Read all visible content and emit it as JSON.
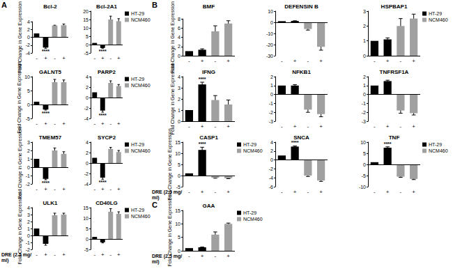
{
  "chart_data": [
    {
      "type": "bar",
      "title": "Bcl-2",
      "panel_label": "A",
      "ylabel": "Fold Change in Gene Expression",
      "categories": [
        "-",
        "+",
        "-",
        "+"
      ],
      "series": [
        {
          "name": "HT-29",
          "color": "#000000",
          "values": [
            1,
            -2.6,
            null,
            null
          ],
          "errors": [
            0,
            0.2,
            null,
            null
          ]
        },
        {
          "name": "NCM460",
          "color": "#a0a0a0",
          "values": [
            null,
            null,
            3.0,
            3.1
          ],
          "errors": [
            null,
            null,
            0.1,
            0.3
          ]
        }
      ],
      "ylim": [
        -4,
        4
      ],
      "yticks": [
        -4,
        -2,
        0,
        2,
        4
      ],
      "grid": false,
      "annotations": [
        {
          "series": "HT-29",
          "index": 1,
          "text": "****"
        }
      ]
    },
    {
      "type": "bar",
      "title": "Bcl-2A1",
      "legend": "right",
      "categories": [
        "-",
        "+",
        "-",
        "+"
      ],
      "series": [
        {
          "name": "HT-29",
          "color": "#000000",
          "values": [
            1,
            -2.0,
            null,
            null
          ],
          "errors": [
            0,
            0.2,
            null,
            null
          ]
        },
        {
          "name": "NCM460",
          "color": "#a0a0a0",
          "values": [
            null,
            null,
            15,
            14
          ],
          "errors": [
            null,
            null,
            2,
            1.5
          ]
        }
      ],
      "ylim": [
        -5,
        20
      ],
      "yticks": [
        -5,
        0,
        5,
        10,
        15,
        20
      ],
      "grid": false,
      "annotations": [
        {
          "series": "HT-29",
          "index": 1,
          "text": "****"
        }
      ]
    },
    {
      "type": "bar",
      "title": "GALNT5",
      "ylabel": "Fold Change in Gene Expression",
      "categories": [
        "-",
        "+",
        "-",
        "+"
      ],
      "series": [
        {
          "name": "HT-29",
          "color": "#000000",
          "values": [
            1,
            -1.8,
            null,
            null
          ],
          "errors": [
            0,
            0.2,
            null,
            null
          ]
        },
        {
          "name": "NCM460",
          "color": "#a0a0a0",
          "values": [
            null,
            null,
            8,
            8
          ],
          "errors": [
            null,
            null,
            1,
            0.8
          ]
        }
      ],
      "ylim": [
        -5,
        10
      ],
      "yticks": [
        -5,
        0,
        5,
        10
      ],
      "grid": false,
      "annotations": [
        {
          "series": "HT-29",
          "index": 1,
          "text": "****"
        }
      ]
    },
    {
      "type": "bar",
      "title": "PARP2",
      "legend": "right",
      "categories": [
        "-",
        "+",
        "-",
        "+"
      ],
      "series": [
        {
          "name": "HT-29",
          "color": "#000000",
          "values": [
            1,
            -2.5,
            null,
            null
          ],
          "errors": [
            0,
            0.3,
            null,
            null
          ]
        },
        {
          "name": "NCM460",
          "color": "#a0a0a0",
          "values": [
            null,
            null,
            2.8,
            2.2
          ],
          "errors": [
            null,
            null,
            0.4,
            0.3
          ]
        }
      ],
      "ylim": [
        -4,
        4
      ],
      "yticks": [
        -4,
        -2,
        0,
        2,
        4
      ],
      "grid": false,
      "annotations": [
        {
          "series": "HT-29",
          "index": 1,
          "text": "****"
        }
      ]
    },
    {
      "type": "bar",
      "title": "TMEM57",
      "ylabel": "Fold Change in Gene Expression",
      "categories": [
        "-",
        "+",
        "-",
        "+"
      ],
      "series": [
        {
          "name": "HT-29",
          "color": "#000000",
          "values": [
            1,
            -1.4,
            null,
            null
          ],
          "errors": [
            0,
            0.1,
            null,
            null
          ]
        },
        {
          "name": "NCM460",
          "color": "#a0a0a0",
          "values": [
            null,
            null,
            2.0,
            1.6
          ],
          "errors": [
            null,
            null,
            0.3,
            0.25
          ]
        }
      ],
      "ylim": [
        -2,
        3
      ],
      "yticks": [
        -2,
        -1,
        0,
        1,
        2,
        3
      ],
      "grid": false,
      "annotations": [
        {
          "series": "HT-29",
          "index": 1,
          "text": "****"
        }
      ]
    },
    {
      "type": "bar",
      "title": "SYCP2",
      "legend": "right",
      "categories": [
        "-",
        "+",
        "-",
        "+"
      ],
      "series": [
        {
          "name": "HT-29",
          "color": "#000000",
          "values": [
            1,
            -2.8,
            null,
            null
          ],
          "errors": [
            0,
            0.3,
            null,
            null
          ]
        },
        {
          "name": "NCM460",
          "color": "#a0a0a0",
          "values": [
            null,
            null,
            2.7,
            2.1
          ],
          "errors": [
            null,
            null,
            0.3,
            0.3
          ]
        }
      ],
      "ylim": [
        -4,
        4
      ],
      "yticks": [
        -4,
        -2,
        0,
        2,
        4
      ],
      "grid": false,
      "annotations": [
        {
          "series": "HT-29",
          "index": 1,
          "text": "****"
        }
      ]
    },
    {
      "type": "bar",
      "title": "ULK1",
      "ylabel": "Fold Change in Gene Expression",
      "xlabel": "DRE (2.5 mg/ml)",
      "categories": [
        "-",
        "+",
        "-",
        "+"
      ],
      "series": [
        {
          "name": "HT-29",
          "color": "#000000",
          "values": [
            1,
            -1.2,
            null,
            null
          ],
          "errors": [
            0,
            0.2,
            null,
            null
          ]
        },
        {
          "name": "NCM460",
          "color": "#a0a0a0",
          "values": [
            null,
            null,
            2.9,
            3.0
          ],
          "errors": [
            null,
            null,
            0.3,
            0.2
          ]
        }
      ],
      "ylim": [
        -2,
        4
      ],
      "yticks": [
        -2,
        -1,
        0,
        1,
        2,
        3,
        4
      ],
      "grid": false,
      "annotations": []
    },
    {
      "type": "bar",
      "title": "CD40LG",
      "legend": "right",
      "categories": [
        "-",
        "+",
        "-",
        "+"
      ],
      "series": [
        {
          "name": "HT-29",
          "color": "#000000",
          "values": [
            1,
            -1.6,
            null,
            null
          ],
          "errors": [
            0,
            0.3,
            null,
            null
          ]
        },
        {
          "name": "NCM460",
          "color": "#a0a0a0",
          "values": [
            null,
            null,
            13,
            12
          ],
          "errors": [
            null,
            null,
            1.5,
            1
          ]
        }
      ],
      "ylim": [
        -5,
        15
      ],
      "yticks": [
        -5,
        0,
        5,
        10,
        15
      ],
      "grid": false,
      "annotations": []
    },
    {
      "type": "bar",
      "title": "BMF",
      "panel_label": "B",
      "ylabel": "Fold Change in Gene Expression",
      "categories": [
        "-",
        "+",
        "-",
        "+"
      ],
      "series": [
        {
          "name": "HT-29",
          "color": "#000000",
          "values": [
            1,
            1.3,
            null,
            null
          ],
          "errors": [
            0,
            0.2,
            null,
            null
          ]
        },
        {
          "name": "NCM460",
          "color": "#a0a0a0",
          "values": [
            null,
            null,
            5.3,
            7.0
          ],
          "errors": [
            null,
            null,
            1.2,
            0.6
          ]
        }
      ],
      "ylim": [
        0,
        8
      ],
      "yticks": [
        0,
        2,
        4,
        6,
        8
      ],
      "grid": false,
      "annotations": []
    },
    {
      "type": "bar",
      "title": "DEFENSIN B",
      "categories": [
        "-",
        "+",
        "-",
        "+"
      ],
      "series": [
        {
          "name": "HT-29",
          "color": "#000000",
          "values": [
            1,
            1.2,
            null,
            null
          ],
          "errors": [
            0,
            0.1,
            null,
            null
          ]
        },
        {
          "name": "NCM460",
          "color": "#a0a0a0",
          "values": [
            null,
            null,
            -6,
            -22
          ],
          "errors": [
            null,
            null,
            1,
            3
          ]
        }
      ],
      "ylim": [
        -30,
        10
      ],
      "yticks": [
        -30,
        -20,
        -10,
        0,
        10
      ],
      "grid": false,
      "annotations": []
    },
    {
      "type": "bar",
      "title": "HSPBAP1",
      "legend": "right",
      "categories": [
        "-",
        "+",
        "-",
        "+"
      ],
      "series": [
        {
          "name": "HT-29",
          "color": "#000000",
          "values": [
            1,
            1.1,
            null,
            null
          ],
          "errors": [
            0,
            0.1,
            null,
            null
          ]
        },
        {
          "name": "NCM460",
          "color": "#a0a0a0",
          "values": [
            null,
            null,
            2.0,
            2.5
          ],
          "errors": [
            null,
            null,
            0.5,
            0.3
          ]
        }
      ],
      "ylim": [
        0,
        3
      ],
      "yticks": [
        0,
        1,
        2,
        3
      ],
      "grid": false,
      "annotations": []
    },
    {
      "type": "bar",
      "title": "IFNG",
      "ylabel": "Fold Change in Gene Expression",
      "categories": [
        "-",
        "+",
        "-",
        "+"
      ],
      "series": [
        {
          "name": "HT-29",
          "color": "#000000",
          "values": [
            1,
            3.3,
            null,
            null
          ],
          "errors": [
            0,
            0.2,
            null,
            null
          ]
        },
        {
          "name": "NCM460",
          "color": "#a0a0a0",
          "values": [
            null,
            null,
            1.9,
            1.5
          ],
          "errors": [
            null,
            null,
            0.4,
            0.4
          ]
        }
      ],
      "ylim": [
        0,
        4
      ],
      "yticks": [
        0,
        1,
        2,
        3,
        4
      ],
      "grid": false,
      "annotations": [
        {
          "series": "HT-29",
          "index": 1,
          "text": "****"
        }
      ]
    },
    {
      "type": "bar",
      "title": "NFKB1",
      "categories": [
        "-",
        "+",
        "-",
        "+"
      ],
      "series": [
        {
          "name": "HT-29",
          "color": "#000000",
          "values": [
            1,
            1.0,
            null,
            null
          ],
          "errors": [
            0,
            0.1,
            null,
            null
          ]
        },
        {
          "name": "NCM460",
          "color": "#a0a0a0",
          "values": [
            null,
            null,
            -1.7,
            -2.2
          ],
          "errors": [
            null,
            null,
            0.3,
            0.3
          ]
        }
      ],
      "ylim": [
        -3,
        2
      ],
      "yticks": [
        -3,
        -2,
        -1,
        0,
        1,
        2
      ],
      "grid": false,
      "annotations": []
    },
    {
      "type": "bar",
      "title": "TNFRSF1A",
      "categories": [
        "-",
        "+",
        "-",
        "+"
      ],
      "series": [
        {
          "name": "HT-29",
          "color": "#000000",
          "values": [
            1,
            1.5,
            null,
            null
          ],
          "errors": [
            0,
            0.1,
            null,
            null
          ]
        },
        {
          "name": "NCM460",
          "color": "#a0a0a0",
          "values": [
            null,
            null,
            -1.8,
            -2.1
          ],
          "errors": [
            null,
            null,
            0.3,
            0.2
          ]
        }
      ],
      "ylim": [
        -3,
        2
      ],
      "yticks": [
        -3,
        -2,
        -1,
        0,
        1,
        2
      ],
      "grid": false,
      "annotations": []
    },
    {
      "type": "bar",
      "title": "CASP1",
      "legend": "right",
      "ylabel": "Fold Change in Gene Expression",
      "xlabel": "DRE (2.5 mg/ml)",
      "categories": [
        "-",
        "+",
        "-",
        "+"
      ],
      "series": [
        {
          "name": "HT-29",
          "color": "#000000",
          "values": [
            1,
            11.5,
            null,
            null
          ],
          "errors": [
            0,
            1.2,
            null,
            null
          ]
        },
        {
          "name": "NCM460",
          "color": "#a0a0a0",
          "values": [
            null,
            null,
            -1.0,
            -1.2
          ],
          "errors": [
            null,
            null,
            0.2,
            0.2
          ]
        }
      ],
      "ylim": [
        -5,
        15
      ],
      "yticks": [
        -5,
        0,
        5,
        10,
        15
      ],
      "grid": false,
      "annotations": [
        {
          "series": "HT-29",
          "index": 1,
          "text": "****"
        }
      ]
    },
    {
      "type": "bar",
      "title": "SNCA",
      "categories": [
        "-",
        "+",
        "-",
        "+"
      ],
      "series": [
        {
          "name": "HT-29",
          "color": "#000000",
          "values": [
            1,
            3.0,
            null,
            null
          ],
          "errors": [
            0,
            0.15,
            null,
            null
          ]
        },
        {
          "name": "NCM460",
          "color": "#a0a0a0",
          "values": [
            null,
            null,
            -3.5,
            -4.6
          ],
          "errors": [
            null,
            null,
            0.2,
            0.2
          ]
        }
      ],
      "ylim": [
        -6,
        4
      ],
      "yticks": [
        -6,
        -4,
        -2,
        0,
        2,
        4
      ],
      "grid": false,
      "annotations": [
        {
          "series": "HT-29",
          "index": 1,
          "text": "****"
        }
      ]
    },
    {
      "type": "bar",
      "title": "TNF",
      "legend": "right",
      "categories": [
        "-",
        "+",
        "-",
        "+"
      ],
      "series": [
        {
          "name": "HT-29",
          "color": "#000000",
          "values": [
            1,
            7.5,
            null,
            null
          ],
          "errors": [
            0,
            0.4,
            null,
            null
          ]
        },
        {
          "name": "NCM460",
          "color": "#a0a0a0",
          "values": [
            null,
            null,
            -5.5,
            -6.5
          ],
          "errors": [
            null,
            null,
            0.3,
            0.3
          ]
        }
      ],
      "ylim": [
        -10,
        10
      ],
      "yticks": [
        -10,
        -5,
        0,
        5,
        10
      ],
      "grid": false,
      "annotations": [
        {
          "series": "HT-29",
          "index": 1,
          "text": "****"
        }
      ]
    },
    {
      "type": "bar",
      "title": "GAA",
      "panel_label": "C",
      "legend": "right",
      "ylabel": "Fold Change in Gene Expression",
      "xlabel": "DRE (2.5 mg/ml)",
      "categories": [
        "-",
        "+",
        "-",
        "+"
      ],
      "series": [
        {
          "name": "HT-29",
          "color": "#000000",
          "values": [
            1,
            1.3,
            null,
            null
          ],
          "errors": [
            0,
            0.1,
            null,
            null
          ]
        },
        {
          "name": "NCM460",
          "color": "#a0a0a0",
          "values": [
            null,
            null,
            6.0,
            10.0
          ],
          "errors": [
            null,
            null,
            1.0,
            0.3
          ]
        }
      ],
      "ylim": [
        0,
        15
      ],
      "yticks": [
        0,
        5,
        10,
        15
      ],
      "grid": false,
      "annotations": []
    }
  ]
}
